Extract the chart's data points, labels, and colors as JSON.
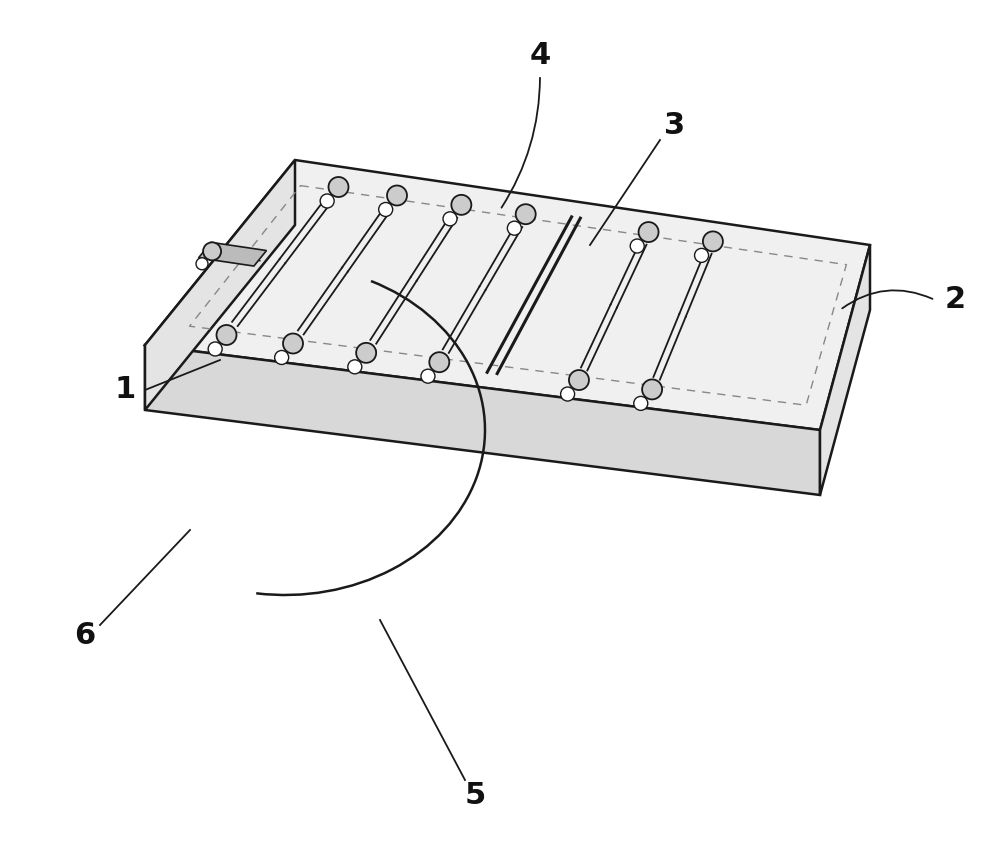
{
  "bg_color": "#ffffff",
  "line_color": "#1a1a1a",
  "dashed_color": "#888888",
  "face_top": "#f0f0f0",
  "face_front": "#d8d8d8",
  "face_side": "#e4e4e4",
  "label_color": "#111111",
  "figsize": [
    10.0,
    8.64
  ],
  "dpi": 100,
  "label_fontsize": 22,
  "lw_main": 1.8,
  "lw_channel": 1.3,
  "lw_manifold": 2.2
}
